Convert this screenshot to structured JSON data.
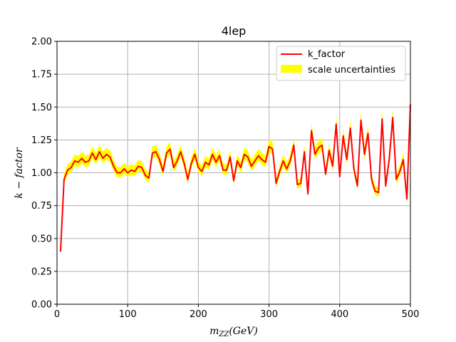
{
  "chart_data": {
    "type": "line",
    "title": "4lep",
    "xlabel": "m_ZZ(GeV)",
    "xlabel_main": "m",
    "xlabel_sub": "ZZ",
    "xlabel_rest": "(GeV)",
    "ylabel": "k − factor",
    "xlim": [
      0,
      500
    ],
    "ylim": [
      0,
      2.0
    ],
    "xticks": [
      0,
      100,
      200,
      300,
      400,
      500
    ],
    "xtick_labels": [
      "0",
      "100",
      "200",
      "300",
      "400",
      "500"
    ],
    "yticks": [
      0,
      0.25,
      0.5,
      0.75,
      1.0,
      1.25,
      1.5,
      1.75,
      2.0
    ],
    "ytick_labels": [
      "0.00",
      "0.25",
      "0.50",
      "0.75",
      "1.00",
      "1.25",
      "1.50",
      "1.75",
      "2.00"
    ],
    "grid": true,
    "legend_placement": "top-right",
    "colors": {
      "line": "#ff0000",
      "band": "#ffff00"
    },
    "series": [
      {
        "name": "k_factor",
        "x": [
          5,
          10,
          15,
          20,
          25,
          30,
          35,
          40,
          45,
          50,
          55,
          60,
          65,
          70,
          75,
          80,
          85,
          90,
          95,
          100,
          105,
          110,
          115,
          120,
          125,
          130,
          135,
          140,
          145,
          150,
          155,
          160,
          165,
          170,
          175,
          180,
          185,
          190,
          195,
          200,
          205,
          210,
          215,
          220,
          225,
          230,
          235,
          240,
          245,
          250,
          255,
          260,
          265,
          270,
          275,
          280,
          285,
          290,
          295,
          300,
          305,
          310,
          315,
          320,
          325,
          330,
          335,
          340,
          345,
          350,
          355,
          360,
          365,
          370,
          375,
          380,
          385,
          390,
          395,
          400,
          405,
          410,
          415,
          420,
          425,
          430,
          435,
          440,
          445,
          450,
          455,
          460,
          465,
          470,
          475,
          480,
          485,
          490,
          495,
          500
        ],
        "values": [
          0.4,
          0.95,
          1.02,
          1.04,
          1.09,
          1.08,
          1.11,
          1.08,
          1.09,
          1.15,
          1.1,
          1.16,
          1.11,
          1.14,
          1.12,
          1.05,
          1.0,
          1.0,
          1.03,
          1.0,
          1.02,
          1.01,
          1.05,
          1.04,
          0.98,
          0.96,
          1.15,
          1.16,
          1.1,
          1.01,
          1.15,
          1.18,
          1.04,
          1.09,
          1.16,
          1.07,
          0.95,
          1.07,
          1.14,
          1.04,
          1.01,
          1.08,
          1.06,
          1.14,
          1.08,
          1.13,
          1.02,
          1.02,
          1.12,
          0.94,
          1.09,
          1.04,
          1.14,
          1.12,
          1.05,
          1.09,
          1.13,
          1.1,
          1.08,
          1.2,
          1.18,
          0.92,
          1.01,
          1.09,
          1.03,
          1.09,
          1.21,
          0.91,
          0.92,
          1.16,
          0.84,
          1.32,
          1.14,
          1.19,
          1.21,
          0.99,
          1.17,
          1.05,
          1.37,
          0.97,
          1.28,
          1.1,
          1.34,
          1.03,
          0.9,
          1.4,
          1.14,
          1.3,
          0.95,
          0.86,
          0.85,
          1.41,
          0.9,
          1.1,
          1.42,
          0.95,
          1.01,
          1.1,
          0.8,
          1.52
        ]
      },
      {
        "name": "scale uncertainties",
        "type": "band",
        "lower_pct": 0.035,
        "upper_pct": 0.045
      }
    ]
  }
}
